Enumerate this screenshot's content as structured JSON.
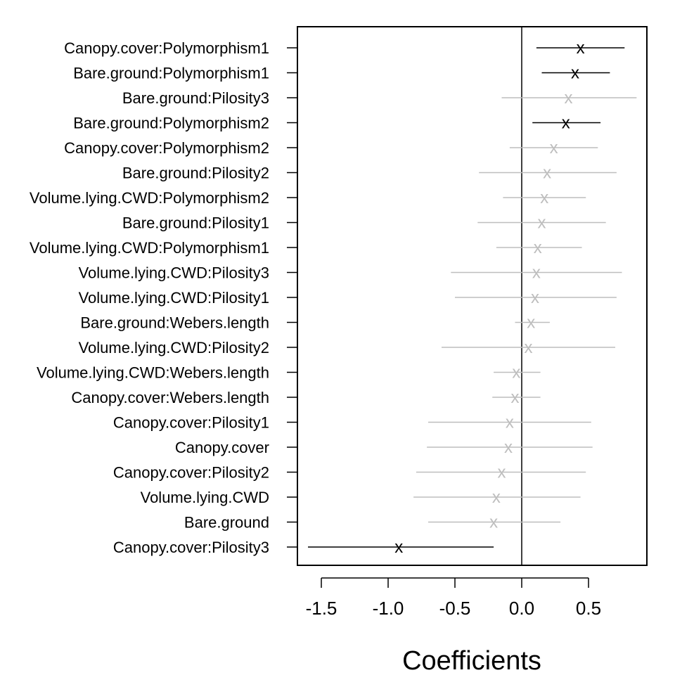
{
  "chart_data": {
    "type": "scatter",
    "xlabel": "Coefficients",
    "ylabel": "",
    "title": "",
    "xlim": [
      -1.7,
      0.95
    ],
    "xticks": [
      -1.5,
      -1.0,
      -0.5,
      0.0,
      0.5
    ],
    "xtick_labels": [
      "-1.5",
      "-1.0",
      "-0.5",
      "0.0",
      "0.5"
    ],
    "reference_line_x": 0,
    "marker_symbol": "x",
    "colors": {
      "significant": "#000000",
      "not_significant": "#bebebe"
    },
    "points": [
      {
        "label": "Canopy.cover:Polymorphism1",
        "estimate": 0.44,
        "lower": 0.11,
        "upper": 0.77,
        "significant": true
      },
      {
        "label": "Bare.ground:Polymorphism1",
        "estimate": 0.4,
        "lower": 0.15,
        "upper": 0.66,
        "significant": true
      },
      {
        "label": "Bare.ground:Pilosity3",
        "estimate": 0.35,
        "lower": -0.15,
        "upper": 0.86,
        "significant": false
      },
      {
        "label": "Bare.ground:Polymorphism2",
        "estimate": 0.33,
        "lower": 0.08,
        "upper": 0.59,
        "significant": true
      },
      {
        "label": "Canopy.cover:Polymorphism2",
        "estimate": 0.24,
        "lower": -0.09,
        "upper": 0.57,
        "significant": false
      },
      {
        "label": "Bare.ground:Pilosity2",
        "estimate": 0.19,
        "lower": -0.32,
        "upper": 0.71,
        "significant": false
      },
      {
        "label": "Volume.lying.CWD:Polymorphism2",
        "estimate": 0.17,
        "lower": -0.14,
        "upper": 0.48,
        "significant": false
      },
      {
        "label": "Bare.ground:Pilosity1",
        "estimate": 0.15,
        "lower": -0.33,
        "upper": 0.63,
        "significant": false
      },
      {
        "label": "Volume.lying.CWD:Polymorphism1",
        "estimate": 0.12,
        "lower": -0.19,
        "upper": 0.45,
        "significant": false
      },
      {
        "label": "Volume.lying.CWD:Pilosity3",
        "estimate": 0.11,
        "lower": -0.53,
        "upper": 0.75,
        "significant": false
      },
      {
        "label": "Volume.lying.CWD:Pilosity1",
        "estimate": 0.1,
        "lower": -0.5,
        "upper": 0.71,
        "significant": false
      },
      {
        "label": "Bare.ground:Webers.length",
        "estimate": 0.07,
        "lower": -0.05,
        "upper": 0.21,
        "significant": false
      },
      {
        "label": "Volume.lying.CWD:Pilosity2",
        "estimate": 0.05,
        "lower": -0.6,
        "upper": 0.7,
        "significant": false
      },
      {
        "label": "Volume.lying.CWD:Webers.length",
        "estimate": -0.04,
        "lower": -0.21,
        "upper": 0.14,
        "significant": false
      },
      {
        "label": "Canopy.cover:Webers.length",
        "estimate": -0.05,
        "lower": -0.22,
        "upper": 0.14,
        "significant": false
      },
      {
        "label": "Canopy.cover:Pilosity1",
        "estimate": -0.09,
        "lower": -0.7,
        "upper": 0.52,
        "significant": false
      },
      {
        "label": "Canopy.cover",
        "estimate": -0.1,
        "lower": -0.71,
        "upper": 0.53,
        "significant": false
      },
      {
        "label": "Canopy.cover:Pilosity2",
        "estimate": -0.15,
        "lower": -0.79,
        "upper": 0.48,
        "significant": false
      },
      {
        "label": "Volume.lying.CWD",
        "estimate": -0.19,
        "lower": -0.81,
        "upper": 0.44,
        "significant": false
      },
      {
        "label": "Bare.ground",
        "estimate": -0.21,
        "lower": -0.7,
        "upper": 0.29,
        "significant": false
      },
      {
        "label": "Canopy.cover:Pilosity3",
        "estimate": -0.92,
        "lower": -1.6,
        "upper": -0.21,
        "significant": true
      }
    ]
  }
}
